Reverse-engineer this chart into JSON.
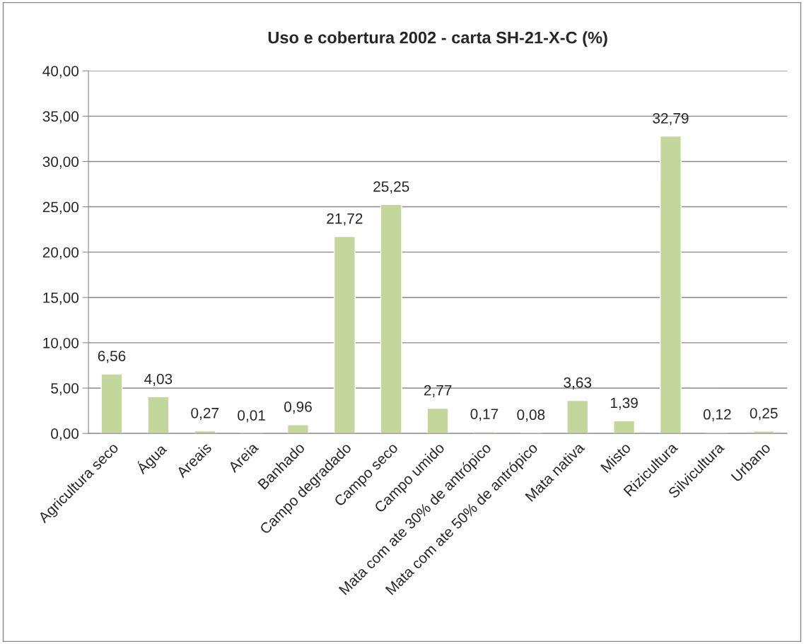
{
  "chart_data": {
    "type": "bar",
    "title": "Uso e cobertura 2002 - carta SH-21-X-C (%)",
    "categories": [
      "Agricultura seco",
      "Água",
      "Areais",
      "Areia",
      "Banhado",
      "Campo degradado",
      "Campo seco",
      "Campo umido",
      "Mata com ate 30% de antrópico",
      "Mata com ate 50% de antrópico",
      "Mata nativa",
      "Misto",
      "Rizicultura",
      "Silvicultura",
      "Urbano"
    ],
    "values": [
      6.56,
      4.03,
      0.27,
      0.01,
      0.96,
      21.72,
      25.25,
      2.77,
      0.17,
      0.08,
      3.63,
      1.39,
      32.79,
      0.12,
      0.25
    ],
    "value_labels": [
      "6,56",
      "4,03",
      "0,27",
      "0,01",
      "0,96",
      "21,72",
      "25,25",
      "2,77",
      "0,17",
      "0,08",
      "3,63",
      "1,39",
      "32,79",
      "0,12",
      "0,25"
    ],
    "color": "#c3d69b",
    "ylim": [
      0,
      40
    ],
    "yticks": [
      {
        "value": 0,
        "label": "0,00"
      },
      {
        "value": 5,
        "label": "5,00"
      },
      {
        "value": 10,
        "label": "10,00"
      },
      {
        "value": 15,
        "label": "15,00"
      },
      {
        "value": 20,
        "label": "20,00"
      },
      {
        "value": 25,
        "label": "25,00"
      },
      {
        "value": 30,
        "label": "30,00"
      },
      {
        "value": 35,
        "label": "35,00"
      },
      {
        "value": 40,
        "label": "40,00"
      }
    ],
    "grid": "y"
  }
}
